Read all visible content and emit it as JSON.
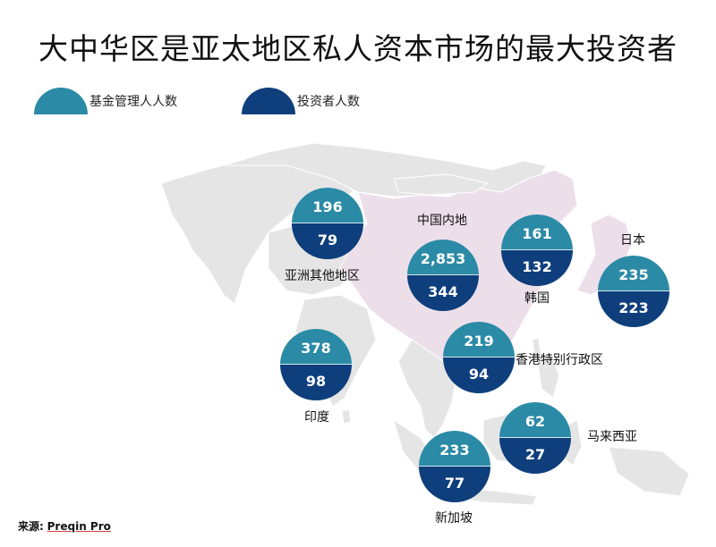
{
  "title": "大中华区是亚太地区私人资本市场的最大投资者",
  "legend": {
    "fund_managers": {
      "label": "基金管理人人数",
      "color": "#2b8aa6"
    },
    "investors": {
      "label": "投资者人数",
      "color": "#0e3f7c"
    }
  },
  "map": {
    "highlight_color": "#ecdfea",
    "base_color": "#e5e5e5"
  },
  "regions": [
    {
      "name": "亚洲其他地区",
      "fund_managers": "196",
      "investors": "79"
    },
    {
      "name": "中国内地",
      "fund_managers": "2,853",
      "investors": "344"
    },
    {
      "name": "韩国",
      "fund_managers": "161",
      "investors": "132"
    },
    {
      "name": "日本",
      "fund_managers": "235",
      "investors": "223"
    },
    {
      "name": "印度",
      "fund_managers": "378",
      "investors": "98"
    },
    {
      "name": "香港特别行政区",
      "fund_managers": "219",
      "investors": "94"
    },
    {
      "name": "马来西亚",
      "fund_managers": "62",
      "investors": "27"
    },
    {
      "name": "新加坡",
      "fund_managers": "233",
      "investors": "77"
    }
  ],
  "source": {
    "prefix": "来源:",
    "brand": "Preqin Pro"
  }
}
